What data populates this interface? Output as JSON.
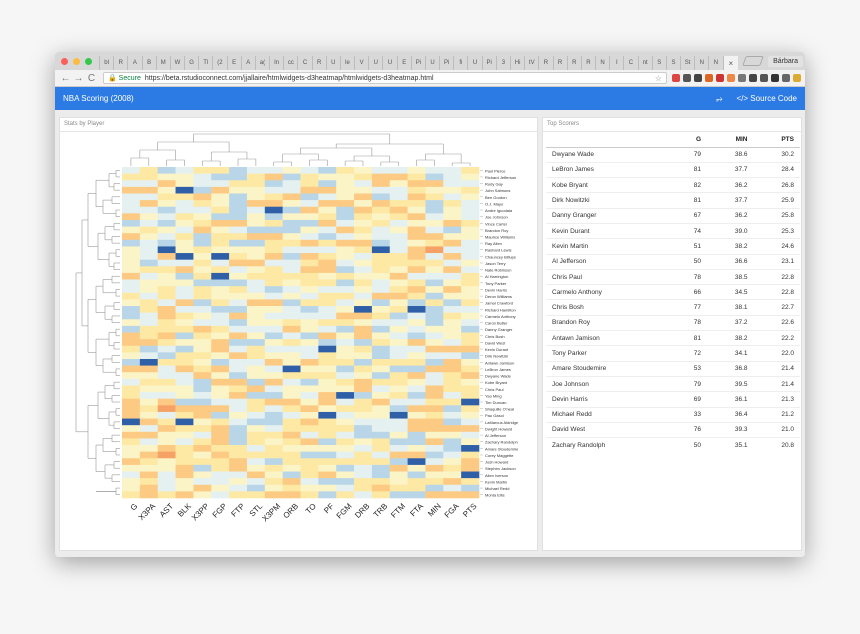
{
  "browser": {
    "tab_labels": [
      "bl",
      "R",
      "A",
      "B",
      "M",
      "W",
      "G",
      "Tl",
      "(2",
      "E",
      "A",
      "a(",
      "In",
      "cc",
      "C",
      "R",
      "U",
      "le",
      "V",
      "U",
      "U",
      "E",
      "Pi",
      "U",
      "Pi",
      "fi",
      "U",
      "Pi",
      "3",
      "Hi",
      "tV",
      "R",
      "R",
      "R",
      "R",
      "N",
      "I",
      "C",
      "nt",
      "S",
      "S",
      "St",
      "N",
      "N"
    ],
    "active_tab_close": "×",
    "profile_name": "Bárbara",
    "secure_label": "Secure",
    "url": "https://beta.rstudioconnect.com/jjallaire/htmlwidgets-d3heatmap/htmlwidgets-d3heatmap.html",
    "back_icon": "←",
    "forward_icon": "→",
    "reload_icon": "C",
    "star_icon": "☆",
    "extension_colors": [
      "#d44",
      "#555",
      "#444",
      "#d62",
      "#c33",
      "#e84",
      "#777",
      "#444",
      "#555",
      "#333",
      "#666",
      "#da3"
    ]
  },
  "app": {
    "title": "NBA Scoring (2008)",
    "share_icon": "share-icon",
    "source_code_label": "</> Source Code",
    "accent": "#2c7be5"
  },
  "left_panel": {
    "title": "Stats by Player"
  },
  "heatmap": {
    "columns": [
      "G",
      "X3PA",
      "AST",
      "BLK",
      "X3PP",
      "FGP",
      "FTP",
      "STL",
      "X3PM",
      "ORB",
      "TO",
      "PF",
      "FGM",
      "DRB",
      "TRB",
      "FTM",
      "FTA",
      "MIN",
      "FGA",
      "PTS"
    ],
    "rows": [
      "Paul Pierce",
      "Richard Jefferson",
      "Rudy Gay",
      "John Salmons",
      "Ben Gordon",
      "O.J. Mayo",
      "Andre Iguodala",
      "Joe Johnson",
      "Vince Carter",
      "Brandon Roy",
      "Maurice Williams",
      "Ray Allen",
      "Rashard Lewis",
      "Chauncey Billups",
      "Jason Terry",
      "Nate Robinson",
      "Al Harrington",
      "Tony Parker",
      "Devin Harris",
      "Deron Williams",
      "Jamal Crawford",
      "Richard Hamilton",
      "Carmelo Anthony",
      "Caron Butler",
      "Danny Granger",
      "Chris Bosh",
      "David West",
      "Kevin Durant",
      "Dirk Nowitzki",
      "Antawn Jamison",
      "LeBron James",
      "Dwyane Wade",
      "Kobe Bryant",
      "Chris Paul",
      "Yao Ming",
      "Tim Duncan",
      "Shaquille O'neal",
      "Pau Gasol",
      "LaMarcus Aldridge",
      "Dwight Howard",
      "Al Jefferson",
      "Zachary Randolph",
      "Amare Stoudemire",
      "Corey Maggette",
      "Josh Howard",
      "Stephen Jackson",
      "Allen Iverson",
      "Kevin Martin",
      "Michael Redd",
      "Monta Ellis"
    ]
  },
  "right_panel": {
    "title": "Top Scorers",
    "columns": [
      "",
      "G",
      "MIN",
      "PTS"
    ],
    "rows": [
      [
        "Dwyane Wade",
        "79",
        "38.6",
        "30.2"
      ],
      [
        "LeBron James",
        "81",
        "37.7",
        "28.4"
      ],
      [
        "Kobe Bryant",
        "82",
        "36.2",
        "26.8"
      ],
      [
        "Dirk Nowitzki",
        "81",
        "37.7",
        "25.9"
      ],
      [
        "Danny Granger",
        "67",
        "36.2",
        "25.8"
      ],
      [
        "Kevin Durant",
        "74",
        "39.0",
        "25.3"
      ],
      [
        "Kevin Martin",
        "51",
        "38.2",
        "24.6"
      ],
      [
        "Al Jefferson",
        "50",
        "36.6",
        "23.1"
      ],
      [
        "Chris Paul",
        "78",
        "38.5",
        "22.8"
      ],
      [
        "Carmelo Anthony",
        "66",
        "34.5",
        "22.8"
      ],
      [
        "Chris Bosh",
        "77",
        "38.1",
        "22.7"
      ],
      [
        "Brandon Roy",
        "78",
        "37.2",
        "22.6"
      ],
      [
        "Antawn Jamison",
        "81",
        "38.2",
        "22.2"
      ],
      [
        "Tony Parker",
        "72",
        "34.1",
        "22.0"
      ],
      [
        "Amare Stoudemire",
        "53",
        "36.8",
        "21.4"
      ],
      [
        "Joe Johnson",
        "79",
        "39.5",
        "21.4"
      ],
      [
        "Devin Harris",
        "69",
        "36.1",
        "21.3"
      ],
      [
        "Michael Redd",
        "33",
        "36.4",
        "21.2"
      ],
      [
        "David West",
        "76",
        "39.3",
        "21.0"
      ],
      [
        "Zachary Randolph",
        "50",
        "35.1",
        "20.8"
      ]
    ]
  }
}
